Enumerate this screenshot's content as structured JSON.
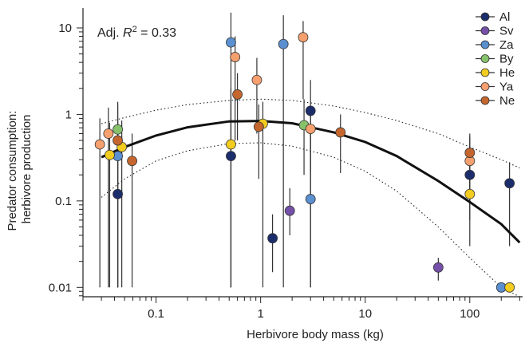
{
  "chart_data": {
    "type": "scatter",
    "xlabel": "Herbivore body mass (kg)",
    "ylabel_lines": [
      "Predator consumption:",
      "herbivore production"
    ],
    "annotation": {
      "prefix": "Adj. ",
      "symbol": "R",
      "superscript": "2",
      "suffix": " = 0.33"
    },
    "x_scale": "log",
    "y_scale": "log",
    "xlim": [
      0.02,
      320
    ],
    "ylim": [
      0.0078,
      17
    ],
    "x_ticks": [
      {
        "value": 0.1,
        "label": "0.1"
      },
      {
        "value": 1,
        "label": "1"
      },
      {
        "value": 10,
        "label": "10"
      },
      {
        "value": 100,
        "label": "100"
      }
    ],
    "y_ticks": [
      {
        "value": 0.01,
        "label": "0.01"
      },
      {
        "value": 0.1,
        "label": "0.1"
      },
      {
        "value": 1,
        "label": "1"
      },
      {
        "value": 10,
        "label": "10"
      }
    ],
    "legend_position": "top-right",
    "series": [
      {
        "name": "Al",
        "color": "#1c2d6b",
        "points": [
          {
            "x": 0.043,
            "y": 0.12,
            "lo": 0.01,
            "hi": 0.6
          },
          {
            "x": 0.52,
            "y": 0.33,
            "lo": 0.01,
            "hi": 2.0
          },
          {
            "x": 1.3,
            "y": 0.037,
            "lo": 0.015,
            "hi": 0.07
          },
          {
            "x": 3.0,
            "y": 1.1,
            "lo": 0.01,
            "hi": 2.5
          },
          {
            "x": 100,
            "y": 0.2,
            "lo": 0.06,
            "hi": 0.42
          },
          {
            "x": 240,
            "y": 0.16,
            "lo": 0.03,
            "hi": 0.28
          }
        ]
      },
      {
        "name": "Sv",
        "color": "#7550a8",
        "points": [
          {
            "x": 1.9,
            "y": 0.077,
            "lo": 0.04,
            "hi": 0.14
          },
          {
            "x": 50,
            "y": 0.017,
            "lo": 0.012,
            "hi": 0.022
          }
        ]
      },
      {
        "name": "Za",
        "color": "#5a8fd0",
        "points": [
          {
            "x": 0.043,
            "y": 0.33,
            "lo": 0.01,
            "hi": 0.85
          },
          {
            "x": 0.52,
            "y": 6.8,
            "lo": 0.01,
            "hi": 15
          },
          {
            "x": 1.65,
            "y": 6.5,
            "lo": 0.01,
            "hi": 14
          },
          {
            "x": 3.0,
            "y": 0.105,
            "lo": 0.01,
            "hi": 0.75
          },
          {
            "x": 200,
            "y": 0.01,
            "lo": 0.01,
            "hi": 0.01
          }
        ]
      },
      {
        "name": "By",
        "color": "#86c26a",
        "points": [
          {
            "x": 0.043,
            "y": 0.67,
            "lo": 0.01,
            "hi": 1.3
          },
          {
            "x": 2.6,
            "y": 0.75,
            "lo": 0.2,
            "hi": 1.5
          }
        ]
      },
      {
        "name": "He",
        "color": "#f2cc1e",
        "points": [
          {
            "x": 0.036,
            "y": 0.34,
            "lo": 0.01,
            "hi": 0.8
          },
          {
            "x": 0.047,
            "y": 0.42,
            "lo": 0.01,
            "hi": 0.85
          },
          {
            "x": 0.52,
            "y": 0.45,
            "lo": 0.01,
            "hi": 1.5
          },
          {
            "x": 1.05,
            "y": 0.78,
            "lo": 0.01,
            "hi": 1.4
          },
          {
            "x": 100,
            "y": 0.12,
            "lo": 0.03,
            "hi": 0.35
          },
          {
            "x": 240,
            "y": 0.01,
            "lo": 0.01,
            "hi": 0.01
          }
        ]
      },
      {
        "name": "Ya",
        "color": "#f5a06e",
        "points": [
          {
            "x": 0.029,
            "y": 0.45,
            "lo": 0.01,
            "hi": 0.9
          },
          {
            "x": 0.035,
            "y": 0.6,
            "lo": 0.01,
            "hi": 1.2
          },
          {
            "x": 0.57,
            "y": 4.6,
            "lo": 0.5,
            "hi": 8
          },
          {
            "x": 0.92,
            "y": 2.5,
            "lo": 0.6,
            "hi": 4.5
          },
          {
            "x": 2.55,
            "y": 7.8,
            "lo": 1.5,
            "hi": 12
          },
          {
            "x": 3.0,
            "y": 0.68,
            "lo": 0.22,
            "hi": 1.0
          },
          {
            "x": 100,
            "y": 0.29,
            "lo": 0.1,
            "hi": 0.55
          }
        ]
      },
      {
        "name": "Ne",
        "color": "#c4662e",
        "points": [
          {
            "x": 0.043,
            "y": 0.5,
            "lo": 0.01,
            "hi": 1.4
          },
          {
            "x": 0.059,
            "y": 0.29,
            "lo": 0.01,
            "hi": 0.6
          },
          {
            "x": 0.6,
            "y": 1.7,
            "lo": 0.5,
            "hi": 3
          },
          {
            "x": 0.96,
            "y": 0.72,
            "lo": 0.18,
            "hi": 1.3
          },
          {
            "x": 5.8,
            "y": 0.62,
            "lo": 0.21,
            "hi": 1.0
          },
          {
            "x": 100,
            "y": 0.36,
            "lo": 0.15,
            "hi": 0.6
          }
        ]
      }
    ],
    "fit": {
      "x": [
        0.03,
        0.05,
        0.1,
        0.2,
        0.5,
        1,
        2,
        5,
        10,
        20,
        50,
        100,
        200,
        300
      ],
      "y": [
        0.32,
        0.42,
        0.57,
        0.71,
        0.83,
        0.84,
        0.79,
        0.62,
        0.48,
        0.33,
        0.17,
        0.097,
        0.054,
        0.033
      ]
    },
    "ci_upper": {
      "x": [
        0.03,
        0.05,
        0.1,
        0.2,
        0.5,
        1,
        2,
        5,
        10,
        20,
        50,
        100,
        200,
        300
      ],
      "y": [
        0.78,
        0.92,
        1.12,
        1.3,
        1.45,
        1.5,
        1.45,
        1.25,
        1.05,
        0.85,
        0.6,
        0.42,
        0.3,
        0.24
      ]
    },
    "ci_lower": {
      "x": [
        0.03,
        0.05,
        0.1,
        0.2,
        0.5,
        1,
        2,
        5,
        10,
        20,
        50,
        100,
        200,
        300
      ],
      "y": [
        0.11,
        0.18,
        0.29,
        0.38,
        0.46,
        0.47,
        0.43,
        0.32,
        0.22,
        0.13,
        0.05,
        0.022,
        0.01,
        0.0078
      ]
    }
  }
}
